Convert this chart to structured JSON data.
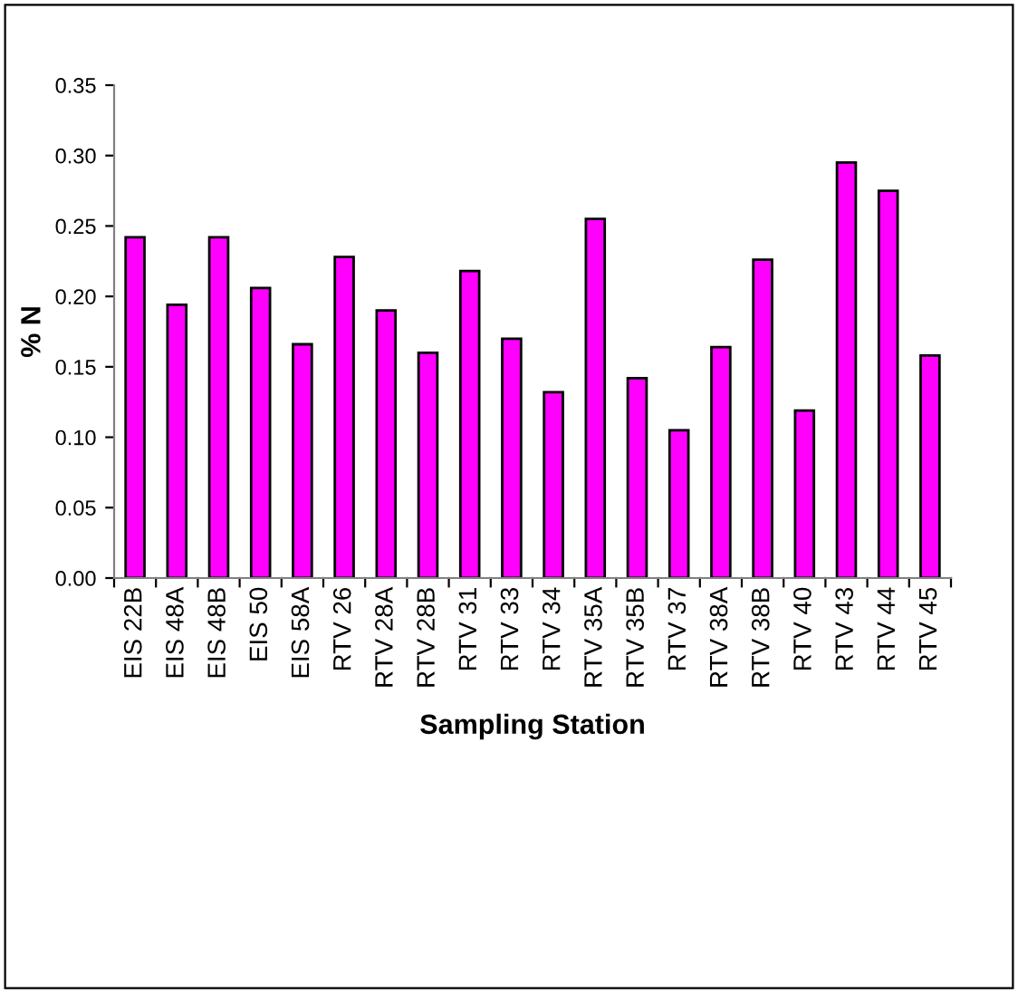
{
  "chart_data": {
    "type": "bar",
    "xlabel": "Sampling Station",
    "ylabel": "% N",
    "categories": [
      "EIS 22B",
      "EIS 48A",
      "EIS 48B",
      "EIS 50",
      "EIS 58A",
      "RTV 26",
      "RTV 28A",
      "RTV 28B",
      "RTV 31",
      "RTV 33",
      "RTV 34",
      "RTV 35A",
      "RTV 35B",
      "RTV 37",
      "RTV 38A",
      "RTV 38B",
      "RTV 40",
      "RTV 43",
      "RTV 44",
      "RTV 45"
    ],
    "values": [
      0.242,
      0.194,
      0.242,
      0.206,
      0.166,
      0.228,
      0.19,
      0.16,
      0.218,
      0.17,
      0.132,
      0.255,
      0.142,
      0.105,
      0.164,
      0.226,
      0.119,
      0.295,
      0.275,
      0.158
    ],
    "color": "#ff00ff",
    "ylim": [
      0,
      0.35
    ],
    "yticks": [
      {
        "value": 0,
        "label": "0.00"
      },
      {
        "value": 0.05,
        "label": "0.05"
      },
      {
        "value": 0.1,
        "label": "0.10"
      },
      {
        "value": 0.15,
        "label": "0.15"
      },
      {
        "value": 0.2,
        "label": "0.20"
      },
      {
        "value": 0.25,
        "label": "0.25"
      },
      {
        "value": 0.3,
        "label": "0.30"
      },
      {
        "value": 0.35,
        "label": "0.35"
      }
    ],
    "grid": false,
    "legend": false
  }
}
